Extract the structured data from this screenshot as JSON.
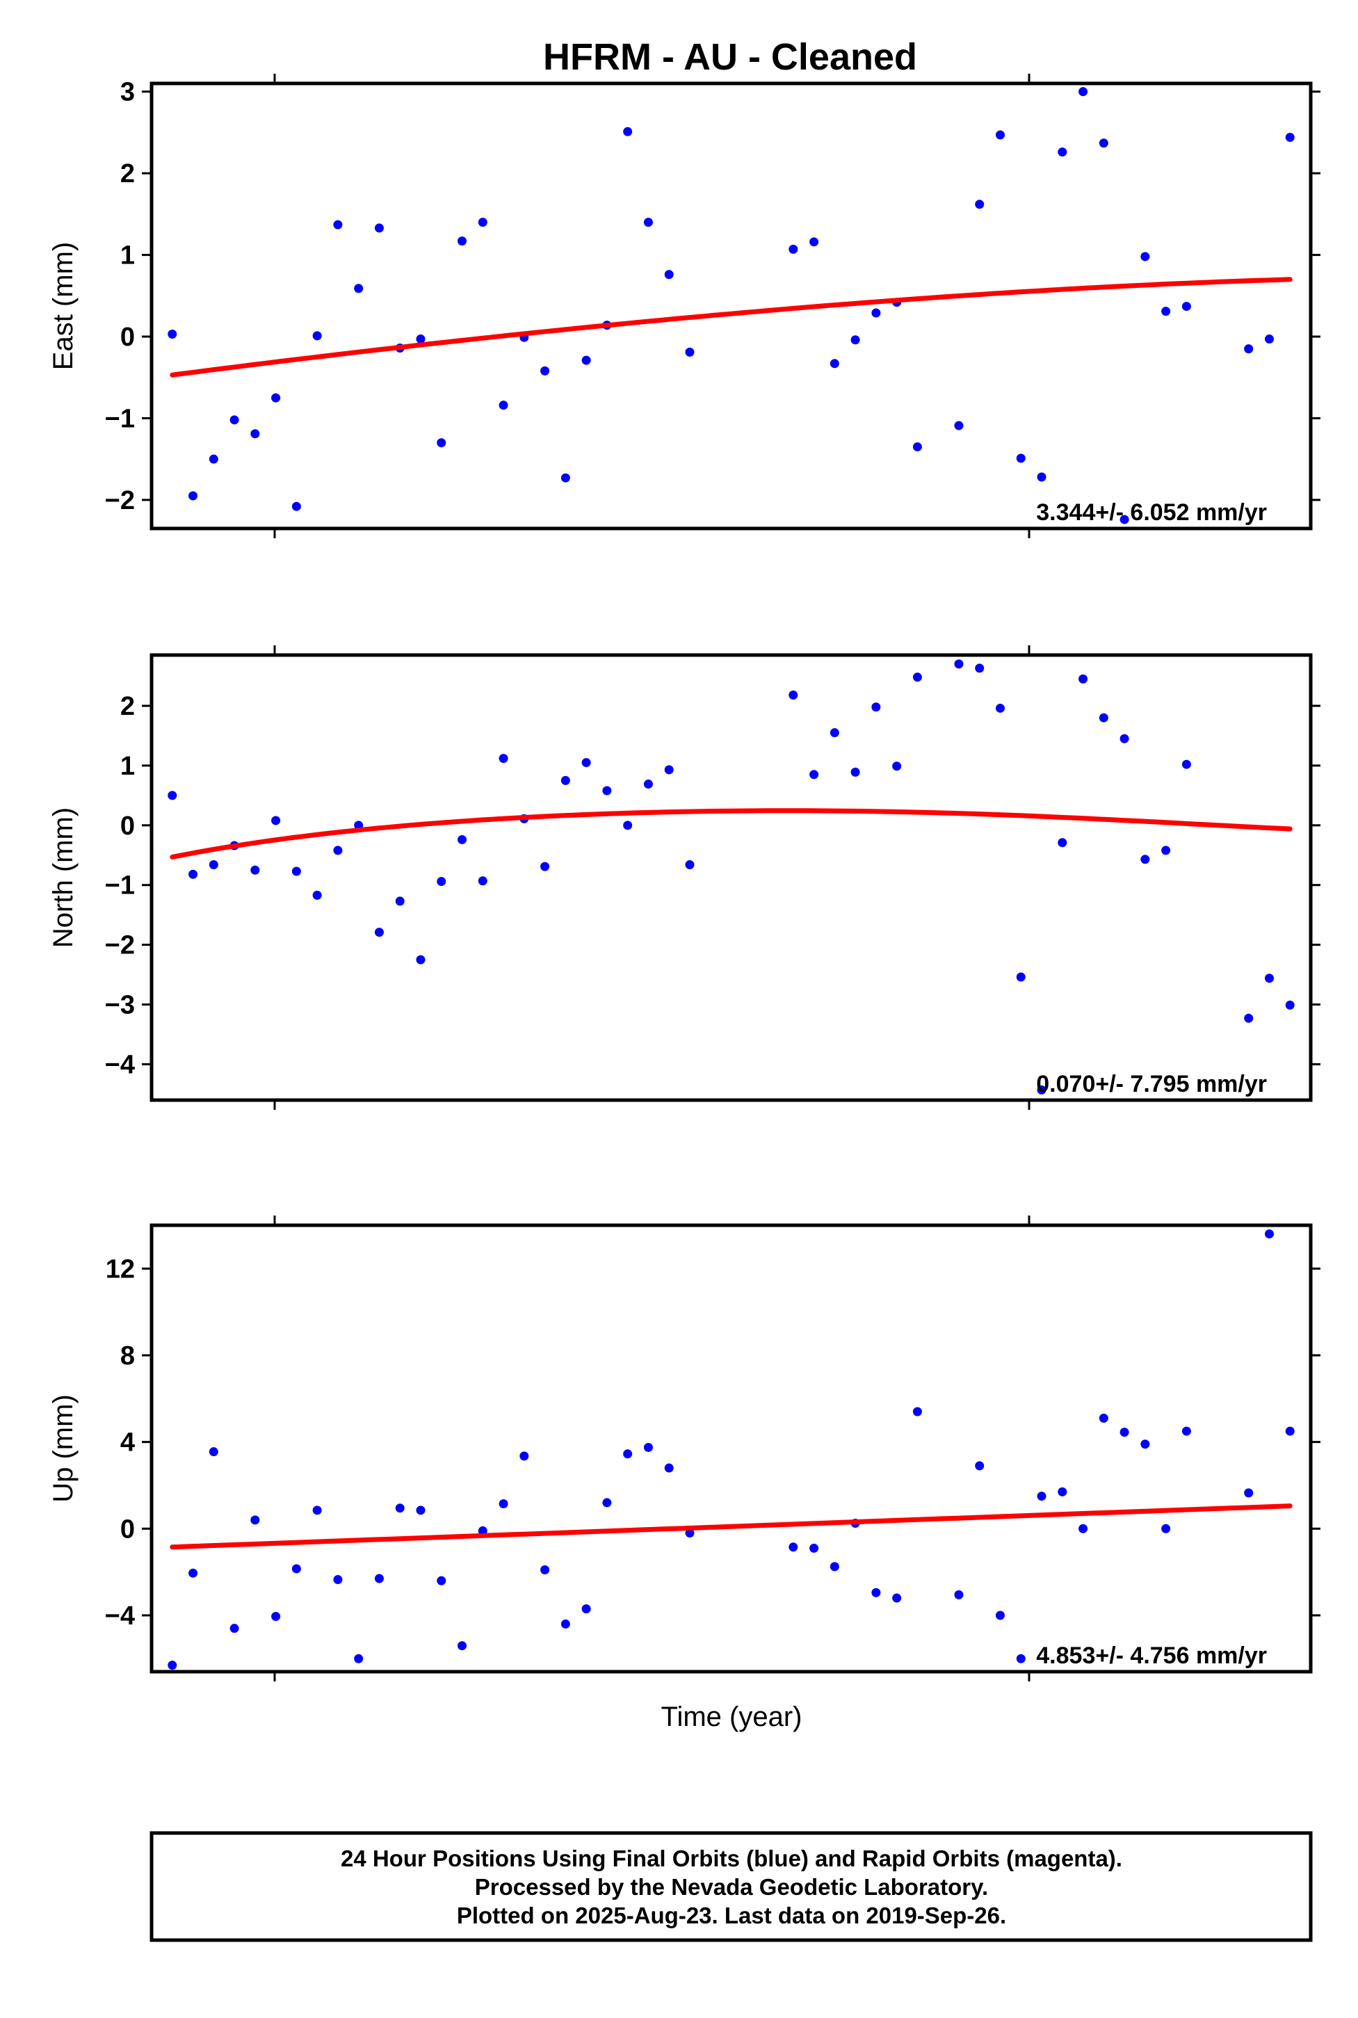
{
  "chart_data": {
    "title": "HFRM  - AU - Cleaned",
    "type": "scatter",
    "xlabel": "Time (year)",
    "x": [
      1,
      2,
      3,
      4,
      5,
      6,
      7,
      8,
      9,
      10,
      11,
      12,
      13,
      14,
      15,
      16,
      17,
      18,
      19,
      20,
      21,
      22,
      23,
      24,
      25,
      26,
      27,
      31,
      32,
      33,
      34,
      35,
      36,
      37,
      39,
      40,
      41,
      42,
      43,
      44,
      45,
      46,
      47,
      48,
      49,
      50,
      51,
      53,
      54,
      55
    ],
    "xlim": [
      0,
      56
    ],
    "colors": {
      "points": "#0000ff",
      "fit": "#ff0000"
    },
    "panels": [
      {
        "name": "east",
        "ylabel": "East (mm)",
        "ylim": [
          -2.35,
          3.1
        ],
        "ticks": [
          3,
          2,
          1,
          0,
          -1,
          -2
        ],
        "tick_labels": [
          "3",
          "2",
          "1",
          "0",
          "−1",
          "−2"
        ],
        "y": [
          0.03,
          -1.95,
          -1.5,
          -1.02,
          -1.19,
          -0.75,
          -2.08,
          0.01,
          1.37,
          0.59,
          1.33,
          -0.14,
          -0.03,
          -1.3,
          1.17,
          1.4,
          -0.84,
          -0.01,
          -0.42,
          -1.73,
          -0.29,
          0.14,
          2.51,
          1.4,
          0.76,
          -0.19,
          null,
          1.07,
          1.16,
          -0.33,
          -0.04,
          0.29,
          0.42,
          -1.35,
          -1.09,
          1.62,
          2.47,
          -1.49,
          -1.72,
          2.26,
          3.0,
          2.37,
          -2.24,
          0.98,
          0.31,
          0.37,
          null,
          -0.15,
          -0.03,
          2.44
        ],
        "fit": [
          -0.47,
          -0.06,
          0.28,
          0.54,
          0.7
        ],
        "rate": "3.344+/- 6.052 mm/yr"
      },
      {
        "name": "north",
        "ylabel": "North (mm)",
        "ylim": [
          -4.6,
          2.85
        ],
        "ticks": [
          2,
          1,
          0,
          -1,
          -2,
          -3,
          -4
        ],
        "tick_labels": [
          "2",
          "1",
          "0",
          "−1",
          "−2",
          "−3",
          "−4"
        ],
        "y": [
          0.5,
          -0.82,
          -0.66,
          -0.34,
          -0.75,
          0.08,
          -0.77,
          -1.17,
          -0.42,
          0.0,
          -1.79,
          -1.27,
          -2.25,
          -0.94,
          -0.24,
          -0.93,
          1.12,
          0.11,
          -0.69,
          0.75,
          1.05,
          0.58,
          0.0,
          0.69,
          0.93,
          -0.66,
          null,
          2.18,
          0.85,
          1.55,
          0.89,
          1.98,
          0.99,
          2.48,
          2.7,
          2.63,
          1.96,
          -2.54,
          -4.43,
          -0.29,
          2.45,
          1.8,
          1.45,
          -0.57,
          -0.42,
          1.02,
          null,
          -3.23,
          -2.56,
          -3.01
        ],
        "fit": [
          -0.53,
          -0.02,
          0.2,
          0.24,
          0.13,
          -0.06
        ],
        "rate": "0.070+/- 7.795 mm/yr"
      },
      {
        "name": "up",
        "ylabel": "Up (mm)",
        "ylim": [
          -6.6,
          14.0
        ],
        "ticks": [
          12,
          8,
          4,
          0,
          -4
        ],
        "tick_labels": [
          "12",
          "8",
          "4",
          "0",
          "−4"
        ],
        "y": [
          -6.3,
          -2.05,
          3.55,
          -4.6,
          0.4,
          -4.05,
          -1.85,
          0.85,
          -2.35,
          -6.0,
          -2.3,
          0.95,
          0.85,
          -2.4,
          -5.4,
          -0.1,
          1.15,
          3.35,
          -1.9,
          -4.4,
          -3.7,
          1.2,
          3.45,
          3.75,
          2.8,
          -0.2,
          null,
          -0.85,
          -0.9,
          -1.75,
          0.25,
          -2.95,
          -3.2,
          5.4,
          -3.05,
          2.9,
          -4.0,
          -6.0,
          1.5,
          1.7,
          0.0,
          5.1,
          4.45,
          3.9,
          0.0,
          4.5,
          null,
          1.65,
          13.6,
          4.5
        ],
        "fit": [
          -0.85,
          1.05
        ],
        "rate": "4.853+/- 4.756 mm/yr"
      }
    ],
    "footer": [
      "24 Hour Positions Using Final Orbits (blue) and Rapid Orbits (magenta).",
      "Processed by the Nevada Geodetic Laboratory.",
      "Plotted on 2025-Aug-23. Last data on 2019-Sep-26."
    ]
  }
}
